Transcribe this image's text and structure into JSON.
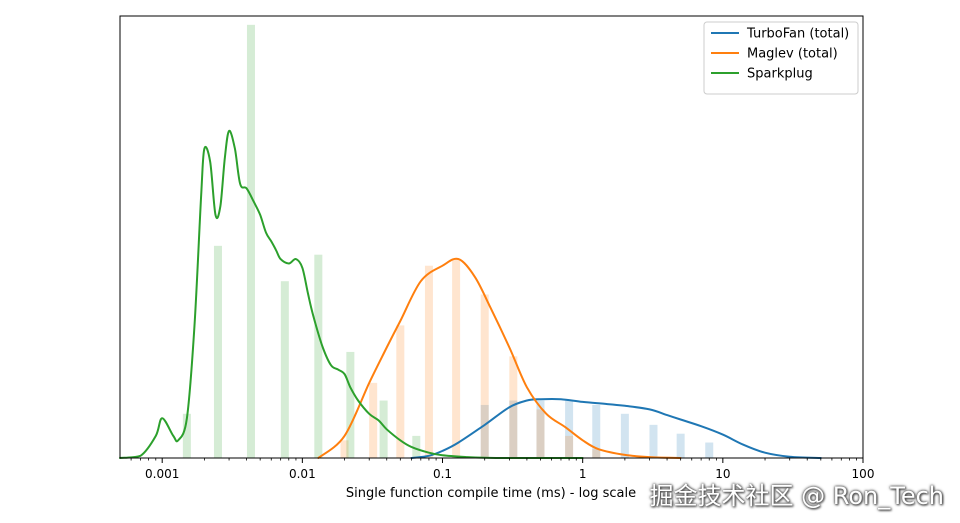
{
  "chart_data": {
    "type": "line",
    "xlabel": "Single function compile time (ms) - log scale",
    "ylabel": "",
    "x_scale": "log",
    "xlim": [
      0.0005,
      100
    ],
    "ylim": [
      0,
      1.0
    ],
    "x_ticks": [
      0.001,
      0.01,
      0.1,
      1,
      10,
      100
    ],
    "x_tick_labels": [
      "0.001",
      "0.01",
      "0.1",
      "1",
      "10",
      "100"
    ],
    "legend": "top-right",
    "grid": false,
    "colors": {
      "TurboFan (total)": "#1f77b4",
      "Maglev (total)": "#ff7f0e",
      "Sparkplug": "#2ca02c"
    },
    "series": [
      {
        "name": "TurboFan (total)",
        "x": [
          0.06,
          0.08,
          0.1,
          0.13,
          0.2,
          0.3,
          0.4,
          0.5,
          0.7,
          1.0,
          1.5,
          2.0,
          3.0,
          4.0,
          5.0,
          7.0,
          10.0,
          14.0,
          20.0,
          30.0,
          50.0
        ],
        "y": [
          0.0,
          0.005,
          0.016,
          0.035,
          0.075,
          0.115,
          0.13,
          0.133,
          0.133,
          0.127,
          0.122,
          0.118,
          0.11,
          0.097,
          0.087,
          0.072,
          0.053,
          0.03,
          0.012,
          0.003,
          0.0
        ],
        "bars": {
          "x": [
            0.2,
            0.32,
            0.5,
            0.8,
            1.25,
            2.0,
            3.2,
            5.0,
            8.0
          ],
          "values": [
            0.12,
            0.13,
            0.13,
            0.13,
            0.12,
            0.1,
            0.075,
            0.055,
            0.035
          ]
        }
      },
      {
        "name": "Maglev (total)",
        "x": [
          0.013,
          0.02,
          0.03,
          0.04,
          0.05,
          0.07,
          0.1,
          0.13,
          0.17,
          0.22,
          0.3,
          0.4,
          0.55,
          0.75,
          1.0,
          1.3,
          2.0,
          3.0,
          5.0
        ],
        "y": [
          0.0,
          0.05,
          0.17,
          0.25,
          0.31,
          0.4,
          0.435,
          0.45,
          0.41,
          0.34,
          0.25,
          0.16,
          0.1,
          0.07,
          0.04,
          0.02,
          0.007,
          0.002,
          0.0
        ],
        "bars": {
          "x": [
            0.02,
            0.032,
            0.05,
            0.08,
            0.125,
            0.2,
            0.32,
            0.5,
            0.8,
            1.25
          ],
          "values": [
            0.04,
            0.17,
            0.3,
            0.435,
            0.45,
            0.37,
            0.23,
            0.11,
            0.05,
            0.02
          ]
        }
      },
      {
        "name": "Sparkplug",
        "x": [
          0.0005,
          0.0007,
          0.0009,
          0.001,
          0.0012,
          0.0013,
          0.0015,
          0.0017,
          0.0019,
          0.002,
          0.0022,
          0.0024,
          0.0026,
          0.0028,
          0.003,
          0.0033,
          0.0036,
          0.004,
          0.0045,
          0.005,
          0.0055,
          0.006,
          0.0065,
          0.007,
          0.008,
          0.009,
          0.01,
          0.011,
          0.012,
          0.014,
          0.016,
          0.018,
          0.02,
          0.022,
          0.025,
          0.03,
          0.035,
          0.04,
          0.05,
          0.06,
          0.08,
          0.1,
          0.15,
          0.2,
          0.3,
          0.5,
          1.0
        ],
        "y": [
          0.0,
          0.005,
          0.05,
          0.09,
          0.05,
          0.04,
          0.09,
          0.3,
          0.6,
          0.7,
          0.67,
          0.55,
          0.57,
          0.68,
          0.74,
          0.7,
          0.62,
          0.61,
          0.58,
          0.55,
          0.51,
          0.49,
          0.47,
          0.45,
          0.44,
          0.45,
          0.43,
          0.37,
          0.32,
          0.25,
          0.21,
          0.2,
          0.19,
          0.16,
          0.13,
          0.1,
          0.085,
          0.065,
          0.04,
          0.025,
          0.012,
          0.006,
          0.002,
          0.0006,
          0.0,
          0.0,
          0.0
        ],
        "bars": {
          "x": [
            0.0015,
            0.0025,
            0.0043,
            0.0075,
            0.013,
            0.022,
            0.038,
            0.065
          ],
          "values": [
            0.1,
            0.48,
            0.98,
            0.4,
            0.46,
            0.24,
            0.13,
            0.05
          ]
        }
      }
    ]
  },
  "watermark": "掘金技术社区 @ Ron_Tech"
}
